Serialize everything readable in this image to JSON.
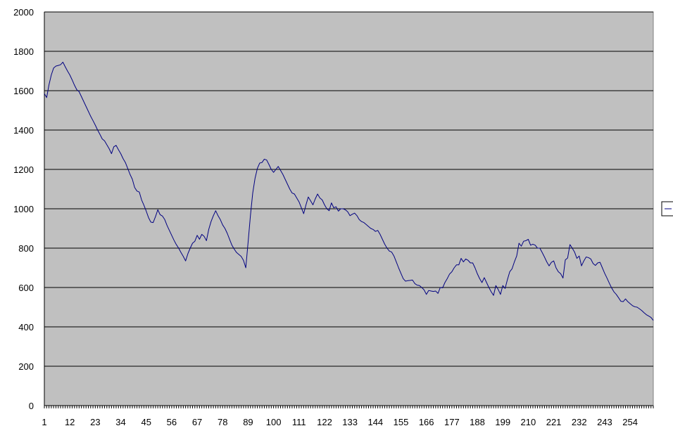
{
  "chart_data": {
    "type": "line",
    "title": "",
    "xlabel": "",
    "ylabel": "",
    "xlim": [
      1,
      264
    ],
    "ylim": [
      0,
      2000
    ],
    "y_ticks": [
      0,
      200,
      400,
      600,
      800,
      1000,
      1200,
      1400,
      1600,
      1800,
      2000
    ],
    "x_ticks": [
      1,
      12,
      23,
      34,
      45,
      56,
      67,
      78,
      89,
      100,
      111,
      122,
      133,
      144,
      155,
      166,
      177,
      188,
      199,
      210,
      221,
      232,
      243,
      254
    ],
    "grid": "horizontal",
    "legend": "right",
    "colors": {
      "plot_background": "#c0c0c0",
      "gridline": "#000000",
      "line": "#000080"
    },
    "series": [
      {
        "values": [
          [
            1,
            1585
          ],
          [
            2,
            1565
          ],
          [
            3,
            1630
          ],
          [
            4,
            1680
          ],
          [
            5,
            1715
          ],
          [
            6,
            1725
          ],
          [
            7,
            1728
          ],
          [
            8,
            1732
          ],
          [
            9,
            1745
          ],
          [
            10,
            1722
          ],
          [
            11,
            1700
          ],
          [
            12,
            1680
          ],
          [
            13,
            1655
          ],
          [
            14,
            1628
          ],
          [
            15,
            1605
          ],
          [
            16,
            1595
          ],
          [
            17,
            1570
          ],
          [
            18,
            1545
          ],
          [
            19,
            1520
          ],
          [
            20,
            1495
          ],
          [
            21,
            1470
          ],
          [
            22,
            1448
          ],
          [
            23,
            1425
          ],
          [
            24,
            1400
          ],
          [
            25,
            1378
          ],
          [
            26,
            1355
          ],
          [
            27,
            1345
          ],
          [
            28,
            1325
          ],
          [
            29,
            1305
          ],
          [
            30,
            1280
          ],
          [
            31,
            1315
          ],
          [
            32,
            1322
          ],
          [
            33,
            1300
          ],
          [
            34,
            1280
          ],
          [
            35,
            1255
          ],
          [
            36,
            1235
          ],
          [
            37,
            1205
          ],
          [
            38,
            1175
          ],
          [
            39,
            1150
          ],
          [
            40,
            1108
          ],
          [
            41,
            1090
          ],
          [
            42,
            1085
          ],
          [
            43,
            1045
          ],
          [
            44,
            1018
          ],
          [
            45,
            988
          ],
          [
            46,
            955
          ],
          [
            47,
            932
          ],
          [
            48,
            930
          ],
          [
            49,
            960
          ],
          [
            50,
            995
          ],
          [
            51,
            970
          ],
          [
            52,
            963
          ],
          [
            53,
            945
          ],
          [
            54,
            915
          ],
          [
            55,
            890
          ],
          [
            56,
            865
          ],
          [
            57,
            840
          ],
          [
            58,
            818
          ],
          [
            59,
            800
          ],
          [
            60,
            778
          ],
          [
            61,
            758
          ],
          [
            62,
            735
          ],
          [
            63,
            772
          ],
          [
            64,
            800
          ],
          [
            65,
            825
          ],
          [
            66,
            835
          ],
          [
            67,
            865
          ],
          [
            68,
            845
          ],
          [
            69,
            870
          ],
          [
            70,
            860
          ],
          [
            71,
            838
          ],
          [
            72,
            895
          ],
          [
            73,
            935
          ],
          [
            74,
            965
          ],
          [
            75,
            990
          ],
          [
            76,
            965
          ],
          [
            77,
            945
          ],
          [
            78,
            918
          ],
          [
            79,
            900
          ],
          [
            80,
            875
          ],
          [
            81,
            845
          ],
          [
            82,
            815
          ],
          [
            83,
            795
          ],
          [
            84,
            778
          ],
          [
            85,
            768
          ],
          [
            86,
            758
          ],
          [
            87,
            738
          ],
          [
            88,
            700
          ],
          [
            89,
            830
          ],
          [
            90,
            965
          ],
          [
            91,
            1080
          ],
          [
            92,
            1155
          ],
          [
            93,
            1205
          ],
          [
            94,
            1232
          ],
          [
            95,
            1235
          ],
          [
            96,
            1252
          ],
          [
            97,
            1248
          ],
          [
            98,
            1225
          ],
          [
            99,
            1200
          ],
          [
            100,
            1185
          ],
          [
            101,
            1200
          ],
          [
            102,
            1215
          ],
          [
            103,
            1195
          ],
          [
            104,
            1175
          ],
          [
            105,
            1150
          ],
          [
            106,
            1125
          ],
          [
            107,
            1100
          ],
          [
            108,
            1080
          ],
          [
            109,
            1075
          ],
          [
            110,
            1055
          ],
          [
            111,
            1035
          ],
          [
            112,
            1005
          ],
          [
            113,
            975
          ],
          [
            114,
            1020
          ],
          [
            115,
            1060
          ],
          [
            116,
            1040
          ],
          [
            117,
            1020
          ],
          [
            118,
            1050
          ],
          [
            119,
            1075
          ],
          [
            120,
            1055
          ],
          [
            121,
            1045
          ],
          [
            122,
            1020
          ],
          [
            123,
            1000
          ],
          [
            124,
            990
          ],
          [
            125,
            1030
          ],
          [
            126,
            1005
          ],
          [
            127,
            1010
          ],
          [
            128,
            988
          ],
          [
            129,
            1000
          ],
          [
            130,
            1000
          ],
          [
            131,
            995
          ],
          [
            132,
            985
          ],
          [
            133,
            965
          ],
          [
            134,
            972
          ],
          [
            135,
            978
          ],
          [
            136,
            965
          ],
          [
            137,
            945
          ],
          [
            138,
            935
          ],
          [
            139,
            930
          ],
          [
            140,
            920
          ],
          [
            141,
            910
          ],
          [
            142,
            900
          ],
          [
            143,
            895
          ],
          [
            144,
            885
          ],
          [
            145,
            890
          ],
          [
            146,
            870
          ],
          [
            147,
            845
          ],
          [
            148,
            820
          ],
          [
            149,
            800
          ],
          [
            150,
            785
          ],
          [
            151,
            780
          ],
          [
            152,
            760
          ],
          [
            153,
            730
          ],
          [
            154,
            700
          ],
          [
            155,
            672
          ],
          [
            156,
            645
          ],
          [
            157,
            632
          ],
          [
            158,
            635
          ],
          [
            159,
            636
          ],
          [
            160,
            638
          ],
          [
            161,
            620
          ],
          [
            162,
            612
          ],
          [
            163,
            610
          ],
          [
            164,
            600
          ],
          [
            165,
            588
          ],
          [
            166,
            565
          ],
          [
            167,
            585
          ],
          [
            168,
            582
          ],
          [
            169,
            580
          ],
          [
            170,
            582
          ],
          [
            171,
            570
          ],
          [
            172,
            600
          ],
          [
            173,
            598
          ],
          [
            174,
            625
          ],
          [
            175,
            645
          ],
          [
            176,
            668
          ],
          [
            177,
            680
          ],
          [
            178,
            700
          ],
          [
            179,
            715
          ],
          [
            180,
            715
          ],
          [
            181,
            748
          ],
          [
            182,
            730
          ],
          [
            183,
            745
          ],
          [
            184,
            738
          ],
          [
            185,
            725
          ],
          [
            186,
            725
          ],
          [
            187,
            700
          ],
          [
            188,
            670
          ],
          [
            189,
            645
          ],
          [
            190,
            625
          ],
          [
            191,
            650
          ],
          [
            192,
            625
          ],
          [
            193,
            600
          ],
          [
            194,
            578
          ],
          [
            195,
            560
          ],
          [
            196,
            610
          ],
          [
            197,
            590
          ],
          [
            198,
            565
          ],
          [
            199,
            610
          ],
          [
            200,
            595
          ],
          [
            201,
            640
          ],
          [
            202,
            680
          ],
          [
            203,
            695
          ],
          [
            204,
            730
          ],
          [
            205,
            760
          ],
          [
            206,
            825
          ],
          [
            207,
            810
          ],
          [
            208,
            835
          ],
          [
            209,
            838
          ],
          [
            210,
            845
          ],
          [
            211,
            815
          ],
          [
            212,
            820
          ],
          [
            213,
            815
          ],
          [
            214,
            800
          ],
          [
            215,
            800
          ],
          [
            216,
            778
          ],
          [
            217,
            755
          ],
          [
            218,
            730
          ],
          [
            219,
            710
          ],
          [
            220,
            728
          ],
          [
            221,
            735
          ],
          [
            222,
            700
          ],
          [
            223,
            680
          ],
          [
            224,
            670
          ],
          [
            225,
            648
          ],
          [
            226,
            740
          ],
          [
            227,
            750
          ],
          [
            228,
            818
          ],
          [
            229,
            800
          ],
          [
            230,
            780
          ],
          [
            231,
            748
          ],
          [
            232,
            760
          ],
          [
            233,
            710
          ],
          [
            234,
            735
          ],
          [
            235,
            755
          ],
          [
            236,
            752
          ],
          [
            237,
            745
          ],
          [
            238,
            722
          ],
          [
            239,
            712
          ],
          [
            240,
            725
          ],
          [
            241,
            728
          ],
          [
            242,
            700
          ],
          [
            243,
            672
          ],
          [
            244,
            648
          ],
          [
            245,
            622
          ],
          [
            246,
            598
          ],
          [
            247,
            578
          ],
          [
            248,
            565
          ],
          [
            249,
            548
          ],
          [
            250,
            530
          ],
          [
            251,
            528
          ],
          [
            252,
            542
          ],
          [
            253,
            528
          ],
          [
            254,
            518
          ],
          [
            255,
            508
          ],
          [
            256,
            502
          ],
          [
            257,
            500
          ],
          [
            258,
            492
          ],
          [
            259,
            483
          ],
          [
            260,
            472
          ],
          [
            261,
            462
          ],
          [
            262,
            455
          ],
          [
            263,
            448
          ],
          [
            264,
            433
          ]
        ]
      }
    ]
  }
}
